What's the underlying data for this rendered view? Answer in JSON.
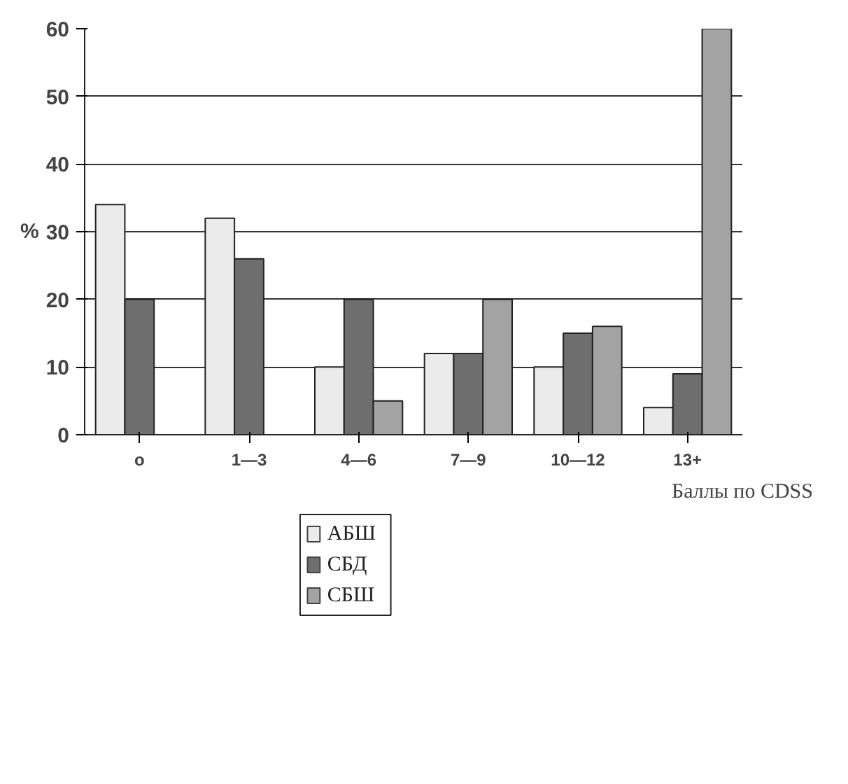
{
  "chart_data": {
    "type": "bar",
    "ylabel": "%",
    "xlabel": "Баллы по CDSS",
    "categories": [
      "o",
      "1—3",
      "4—6",
      "7—9",
      "10—12",
      "13+"
    ],
    "series": [
      {
        "name": "АБШ",
        "color": "#ebebeb",
        "values": [
          34,
          32,
          10,
          12,
          10,
          4
        ]
      },
      {
        "name": "СБД",
        "color": "#6e6e6e",
        "values": [
          20,
          26,
          20,
          12,
          15,
          9
        ]
      },
      {
        "name": "СБШ",
        "color": "#a3a3a3",
        "values": [
          0,
          0,
          5,
          20,
          16,
          60
        ]
      }
    ],
    "ylim": [
      0,
      60
    ],
    "yticks": [
      0,
      10,
      20,
      30,
      40,
      50,
      60
    ],
    "grid": "y",
    "legend": "bottom"
  }
}
